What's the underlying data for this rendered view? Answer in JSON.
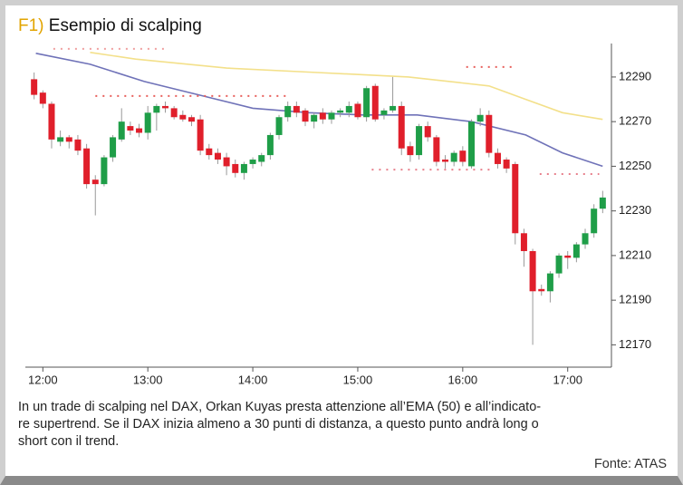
{
  "chart_data": {
    "type": "candlestick",
    "title_prefix": "F1)",
    "title": "Esempio di scalping",
    "x": [
      715,
      720,
      725,
      730,
      735,
      740,
      745,
      750,
      755,
      760,
      765,
      770,
      775,
      780,
      785,
      790,
      795,
      800,
      805,
      810,
      815,
      820,
      825,
      830,
      835,
      840,
      845,
      850,
      855,
      860,
      865,
      870,
      875,
      880,
      885,
      890,
      895,
      900,
      905,
      910,
      915,
      920,
      925,
      930,
      935,
      940,
      945,
      950,
      955,
      960,
      965,
      970,
      975,
      980,
      985,
      990,
      995,
      1000,
      1005,
      1010,
      1015,
      1020,
      1025,
      1030,
      1035,
      1040
    ],
    "open": [
      12289,
      12283,
      12278,
      12261,
      12263,
      12262,
      12258,
      12244,
      12242,
      12254,
      12262,
      12268,
      12267,
      12265,
      12274,
      12277,
      12276,
      12273,
      12272,
      12271,
      12258,
      12256,
      12254,
      12251,
      12247,
      12251,
      12252,
      12255,
      12264,
      12272,
      12277,
      12275,
      12270,
      12274,
      12271,
      12274,
      12274,
      12278,
      12272,
      12286,
      12273,
      12275,
      12277,
      12259,
      12255,
      12268,
      12263,
      12253,
      12252,
      12257,
      12250,
      12270,
      12273,
      12256,
      12253,
      12251,
      12220,
      12212,
      12195,
      12194,
      12202,
      12210,
      12209,
      12215,
      12220,
      12231
    ],
    "high": [
      12292,
      12284,
      12279,
      12266,
      12264,
      12264,
      12260,
      12246,
      12255,
      12264,
      12276,
      12270,
      12269,
      12277,
      12278,
      12279,
      12277,
      12275,
      12273,
      12273,
      12260,
      12258,
      12256,
      12253,
      12252,
      12254,
      12256,
      12265,
      12273,
      12279,
      12279,
      12276,
      12274,
      12276,
      12275,
      12276,
      12279,
      12279,
      12286,
      12287,
      12276,
      12290,
      12279,
      12261,
      12269,
      12270,
      12264,
      12255,
      12257,
      12259,
      12271,
      12276,
      12275,
      12258,
      12254,
      12252,
      12222,
      12213,
      12197,
      12203,
      12211,
      12212,
      12216,
      12222,
      12233,
      12239
    ],
    "low": [
      12280,
      12276,
      12258,
      12259,
      12258,
      12255,
      12240,
      12228,
      12241,
      12252,
      12261,
      12264,
      12263,
      12262,
      12266,
      12274,
      12271,
      12270,
      12268,
      12255,
      12253,
      12251,
      12246,
      12245,
      12244,
      12249,
      12250,
      12253,
      12262,
      12270,
      12272,
      12268,
      12267,
      12269,
      12269,
      12272,
      12272,
      12271,
      12270,
      12270,
      12271,
      12274,
      12255,
      12252,
      12253,
      12261,
      12250,
      12249,
      12250,
      12250,
      12249,
      12268,
      12254,
      12249,
      12247,
      12215,
      12205,
      12170,
      12192,
      12189,
      12200,
      12204,
      12207,
      12213,
      12218,
      12229
    ],
    "close": [
      12282,
      12278,
      12262,
      12263,
      12261,
      12257,
      12242,
      12242,
      12254,
      12263,
      12270,
      12266,
      12265,
      12274,
      12277,
      12276,
      12272,
      12271,
      12270,
      12257,
      12255,
      12253,
      12250,
      12247,
      12251,
      12253,
      12255,
      12264,
      12272,
      12277,
      12274,
      12270,
      12273,
      12271,
      12274,
      12275,
      12277,
      12272,
      12285,
      12271,
      12275,
      12277,
      12258,
      12255,
      12268,
      12263,
      12252,
      12252,
      12256,
      12252,
      12270,
      12273,
      12256,
      12251,
      12249,
      12220,
      12212,
      12194,
      12194,
      12202,
      12210,
      12209,
      12215,
      12220,
      12231,
      12236
    ],
    "up_color": "#1f9e48",
    "down_color": "#e01f2b",
    "lines": [
      {
        "color": "#6f72b8",
        "style": "solid",
        "x": [
          716,
          747,
          778,
          809,
          840,
          872,
          903,
          934,
          965,
          996,
          1017,
          1040
        ],
        "values": [
          12300.6,
          12295.7,
          12288,
          12282,
          12276,
          12274,
          12273,
          12273,
          12270,
          12264,
          12256,
          12250
        ]
      },
      {
        "color": "#f3e08a",
        "style": "solid",
        "x": [
          747,
          773,
          825,
          877,
          929,
          975,
          996,
          1017,
          1040
        ],
        "values": [
          12301,
          12298,
          12294,
          12292,
          12290,
          12286,
          12280,
          12274,
          12271
        ]
      },
      {
        "color": "#f0a0a0",
        "style": "dotted",
        "x": [
          726,
          791
        ],
        "values": [
          12302.6,
          12302.6
        ]
      },
      {
        "color": "#e8605c",
        "style": "dotted",
        "x": [
          750,
          859
        ],
        "values": [
          12281.5,
          12281.5
        ]
      },
      {
        "color": "#e8605c",
        "style": "dotted",
        "x": [
          962,
          988
        ],
        "values": [
          12294.5,
          12294.5
        ]
      },
      {
        "color": "#e8808c",
        "style": "dotted",
        "x": [
          908,
          978
        ],
        "values": [
          12248.5,
          12248.5
        ]
      },
      {
        "color": "#e8808c",
        "style": "dotted",
        "x": [
          1004,
          1038
        ],
        "values": [
          12246.5,
          12246.5
        ]
      }
    ],
    "xlim": [
      710,
      1045
    ],
    "ylim": [
      12160,
      12305
    ],
    "xticks": [
      {
        "value": 720,
        "label": "12:00"
      },
      {
        "value": 780,
        "label": "13:00"
      },
      {
        "value": 840,
        "label": "14:00"
      },
      {
        "value": 900,
        "label": "15:00"
      },
      {
        "value": 960,
        "label": "16:00"
      },
      {
        "value": 1020,
        "label": "17:00"
      }
    ],
    "yticks": [
      12170,
      12190,
      12210,
      12230,
      12250,
      12270,
      12290
    ],
    "caption": [
      "In un trade di scalping nel DAX, Orkan Kuyas presta attenzione all’EMA (50) e all’indicato-",
      "re supertrend. Se il DAX inizia almeno a 30 punti di distanza, a questo punto andrà long o",
      "short con il trend."
    ],
    "source": "Fonte: ATAS"
  }
}
